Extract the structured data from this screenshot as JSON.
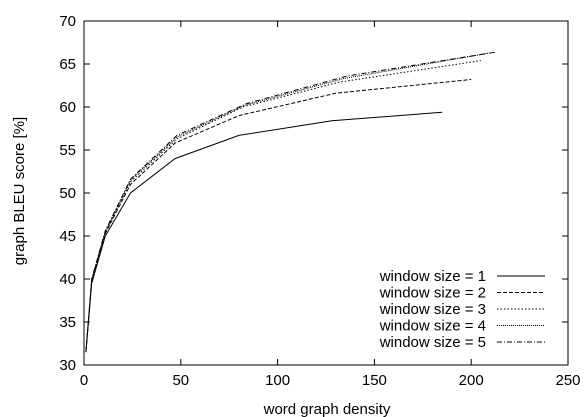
{
  "chart_data": {
    "type": "line",
    "title": "",
    "xlabel": "word graph density",
    "ylabel": "graph BLEU score [%]",
    "xlim": [
      0,
      250
    ],
    "ylim": [
      30,
      70
    ],
    "xticks": [
      0,
      50,
      100,
      150,
      200,
      250
    ],
    "yticks": [
      30,
      35,
      40,
      45,
      50,
      55,
      60,
      65,
      70
    ],
    "grid": false,
    "legend_position": "bottom-right",
    "series": [
      {
        "name": "window size = 1",
        "dash": "solid",
        "x": [
          1,
          4,
          11,
          24,
          47,
          80,
          128,
          185
        ],
        "y": [
          31.5,
          39.5,
          45.0,
          50.0,
          54.0,
          56.7,
          58.4,
          59.4
        ]
      },
      {
        "name": "window size = 2",
        "dash": "dashed",
        "x": [
          1,
          4,
          11,
          24,
          47,
          80,
          130,
          200
        ],
        "y": [
          31.5,
          39.8,
          45.3,
          51.0,
          55.8,
          59.0,
          61.6,
          63.2
        ]
      },
      {
        "name": "window size = 3",
        "dash": "dotted",
        "x": [
          1,
          4,
          11,
          24,
          48,
          82,
          132,
          205
        ],
        "y": [
          31.5,
          39.9,
          45.4,
          51.3,
          56.3,
          60.0,
          62.9,
          65.4
        ]
      },
      {
        "name": "window size = 4",
        "dash": "fine-dotted",
        "x": [
          1,
          4,
          11,
          24,
          48,
          83,
          134,
          210
        ],
        "y": [
          31.5,
          39.9,
          45.5,
          51.5,
          56.5,
          60.2,
          63.3,
          66.3
        ]
      },
      {
        "name": "window size = 5",
        "dash": "dash-dot",
        "x": [
          1,
          4,
          11,
          24,
          48,
          84,
          136,
          213
        ],
        "y": [
          31.5,
          40.0,
          45.6,
          51.6,
          56.7,
          60.4,
          63.6,
          66.4
        ]
      }
    ]
  }
}
